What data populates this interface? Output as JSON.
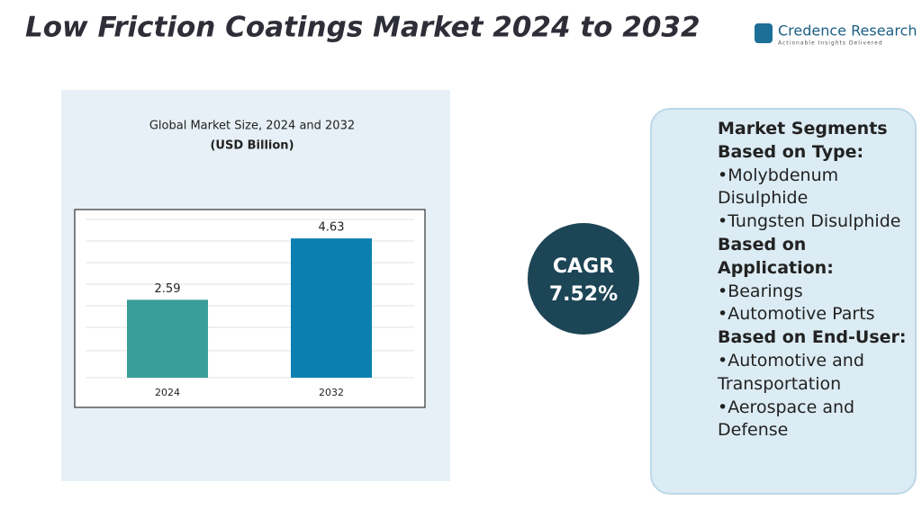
{
  "header": {
    "title": "Low Friction Coatings Market 2024 to 2032",
    "brand": "Credence Research",
    "tagline": "Actionable Insights Delivered"
  },
  "chart_data": {
    "type": "bar",
    "title": "Global Market Size, 2024 and 2032",
    "subtitle": "(USD Billion)",
    "categories": [
      "2024",
      "2032"
    ],
    "values": [
      2.59,
      4.63
    ],
    "colors": [
      "#3a9e98",
      "#0b80b0"
    ],
    "ylim": [
      0,
      5.5
    ]
  },
  "cagr": {
    "label": "CAGR",
    "value": "7.52%"
  },
  "segments": {
    "title": "Market Segments",
    "groups": [
      {
        "heading": "Based on Type:",
        "items": [
          "•Molybdenum Disulphide",
          "•Tungsten Disulphide"
        ]
      },
      {
        "heading": "Based on Application:",
        "items": [
          "•Bearings",
          "•Automotive Parts"
        ]
      },
      {
        "heading": "Based on End-User:",
        "items": [
          "•Automotive and Transportation",
          "•Aerospace and Defense"
        ]
      }
    ]
  }
}
